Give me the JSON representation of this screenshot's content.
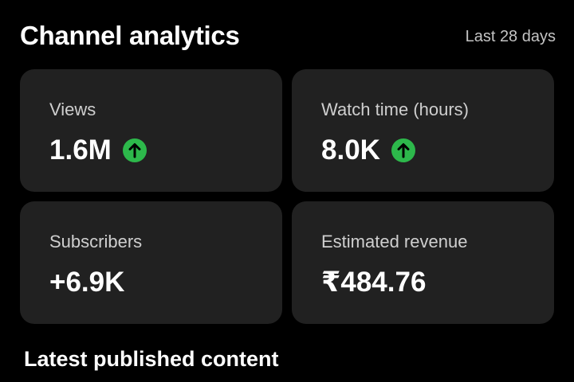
{
  "header": {
    "title": "Channel analytics",
    "period": "Last 28 days"
  },
  "cards": [
    {
      "label": "Views",
      "value": "1.6M"
    },
    {
      "label": "Watch time (hours)",
      "value": "8.0K"
    },
    {
      "label": "Subscribers",
      "value": "+6.9K"
    },
    {
      "label": "Estimated revenue",
      "value": "₹484.76"
    }
  ],
  "section": {
    "title": "Latest published content"
  }
}
